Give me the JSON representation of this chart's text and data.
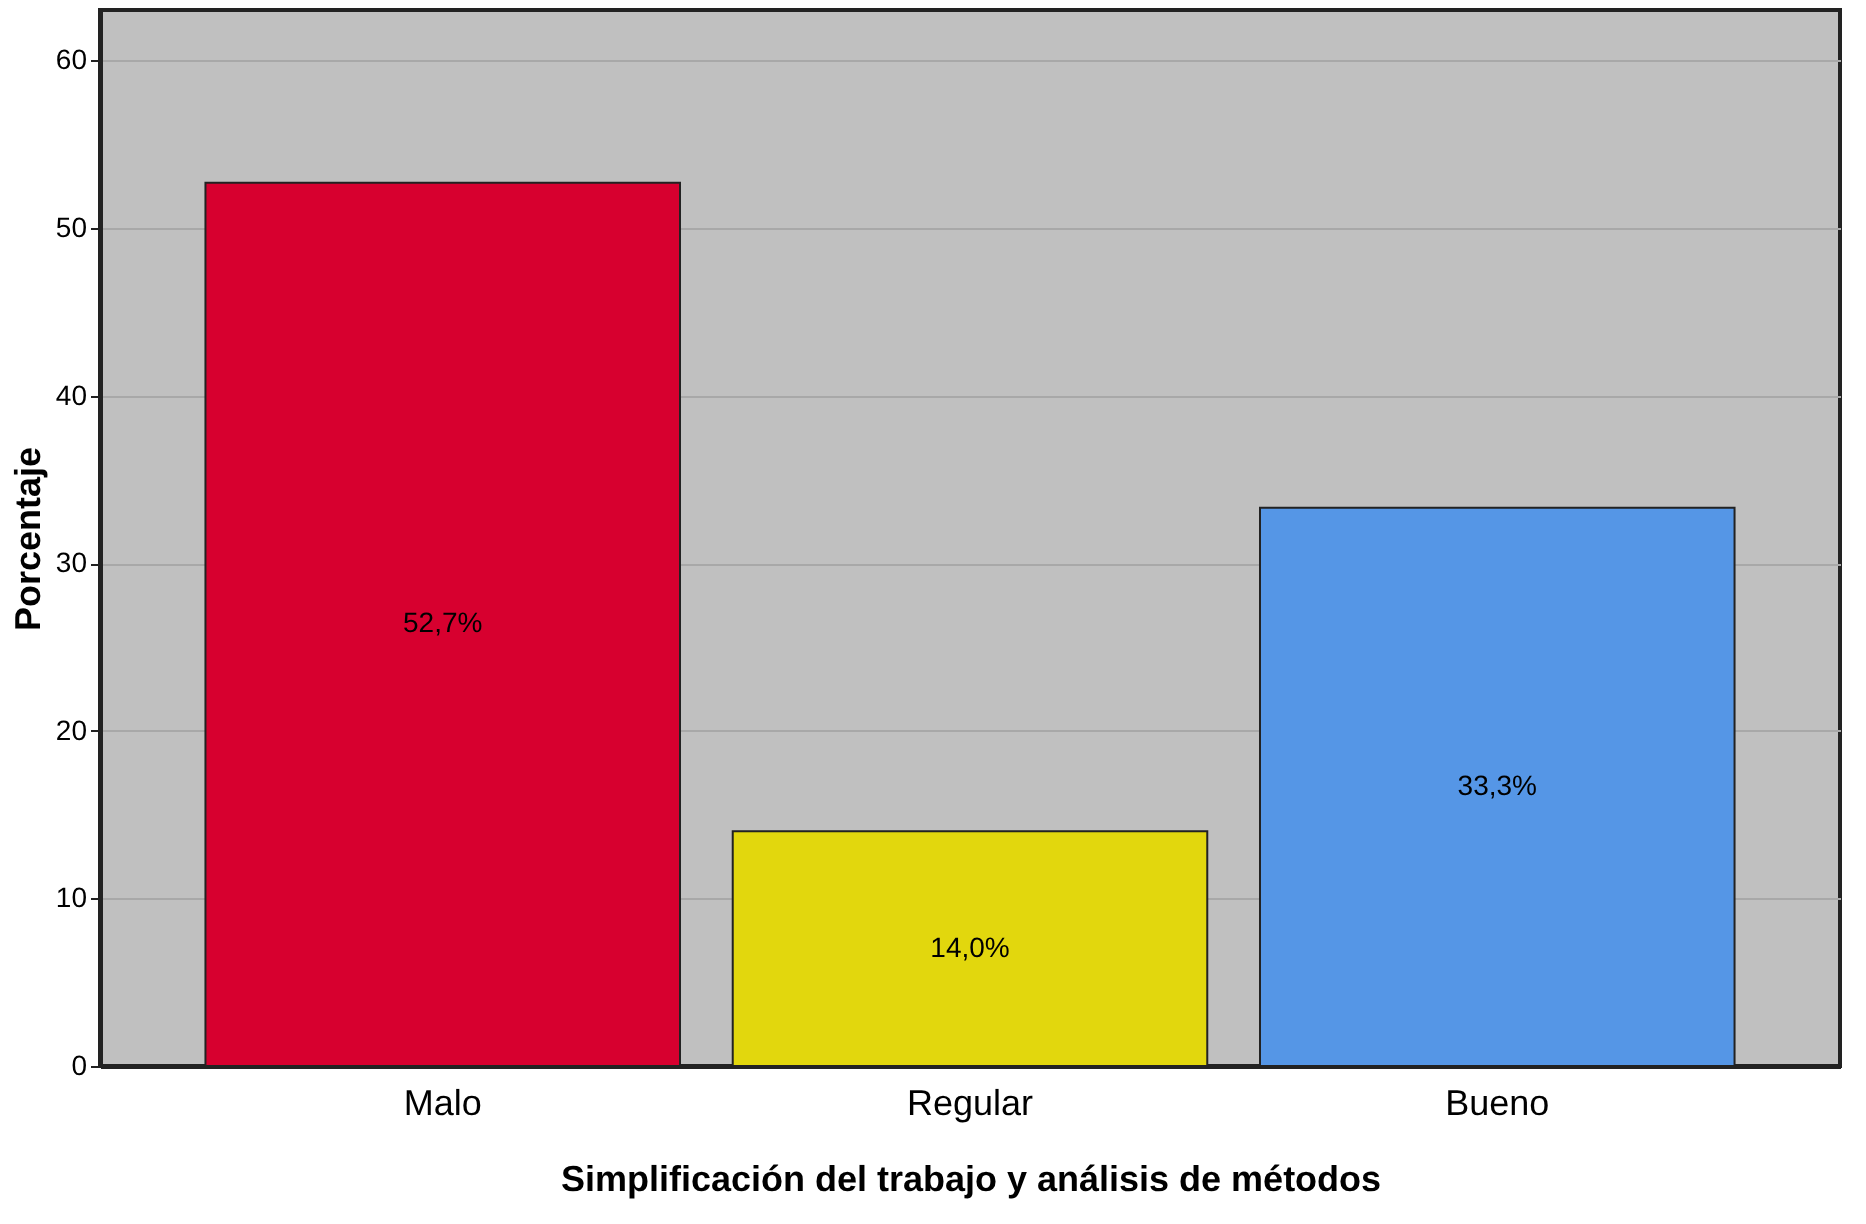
{
  "chart_data": {
    "type": "bar",
    "xlabel": "Simplificación del trabajo y análisis de métodos",
    "ylabel": "Porcentaje",
    "categories": [
      "Malo",
      "Regular",
      "Bueno"
    ],
    "values": [
      52.7,
      14.0,
      33.3
    ],
    "colors": [
      "#d7002f",
      "#e2d70d",
      "#5596e6"
    ],
    "value_labels": [
      "52,7%",
      "14,0%",
      "33,3%"
    ],
    "ylim": [
      0,
      63
    ],
    "yticks": [
      0,
      10,
      20,
      30,
      40,
      50,
      60
    ],
    "grid": "y"
  }
}
